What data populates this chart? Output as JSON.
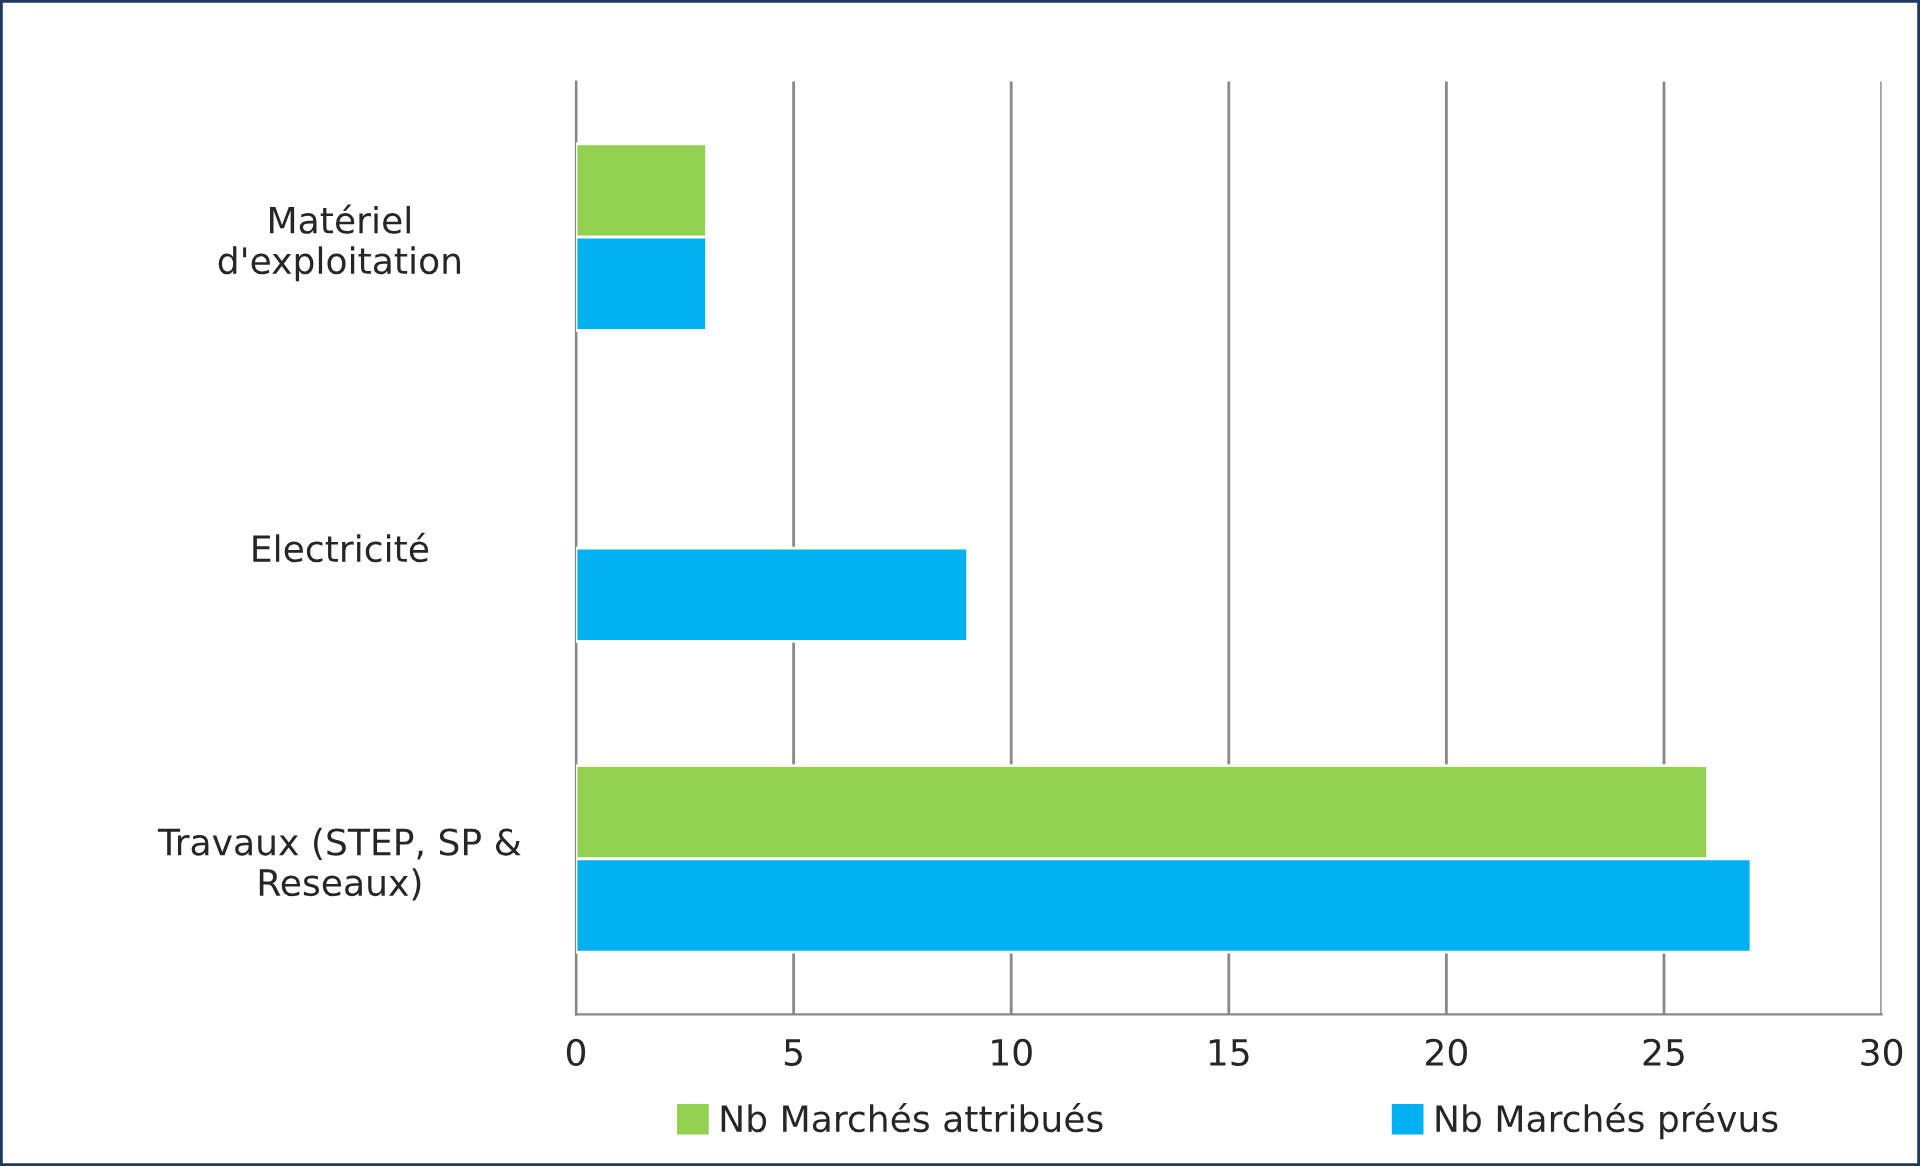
{
  "chart_data": {
    "type": "bar",
    "orientation": "horizontal",
    "categories": [
      "Matériel\nd'exploitation",
      "Electricité",
      "Travaux (STEP, SP &\nReseaux)"
    ],
    "series": [
      {
        "name": "Nb Marchés attribués",
        "color": "#92d050",
        "values": [
          3,
          null,
          26
        ]
      },
      {
        "name": "Nb Marchés prévus",
        "color": "#00b0f0",
        "values": [
          3,
          9,
          27
        ]
      }
    ],
    "xlim": [
      0,
      30
    ],
    "xticks": [
      0,
      5,
      10,
      15,
      20,
      25,
      30
    ],
    "grid": "x",
    "legend": "bottom"
  }
}
